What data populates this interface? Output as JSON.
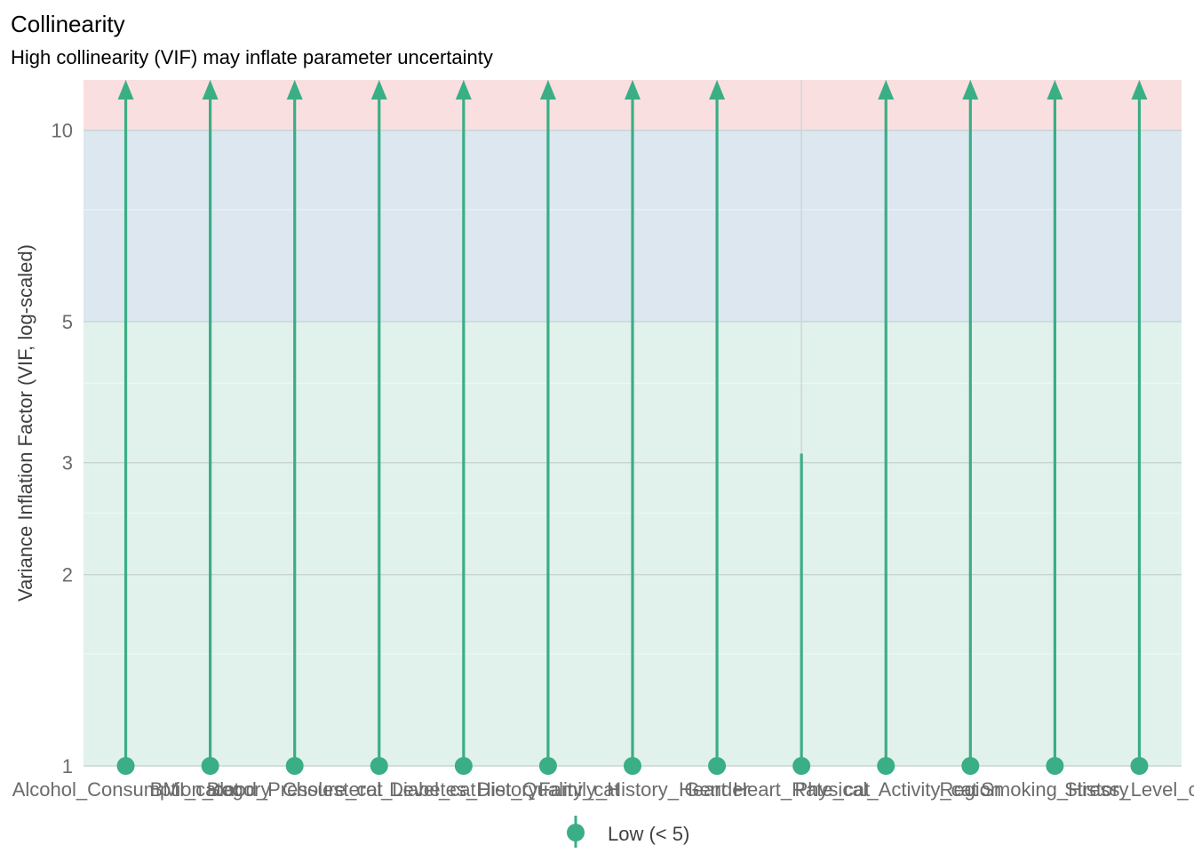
{
  "chart_data": {
    "type": "lollipop",
    "title": "Collinearity",
    "subtitle": "High collinearity (VIF) may inflate parameter uncertainty",
    "xlabel": "",
    "ylabel": "Variance Inflation Factor (VIF, log-scaled)",
    "y_scale": "log",
    "ylim": [
      1,
      12
    ],
    "y_ticks": [
      1,
      2,
      3,
      5,
      10
    ],
    "bands": [
      {
        "from": 1,
        "to": 5,
        "color": "#e1f1ec"
      },
      {
        "from": 5,
        "to": 10,
        "color": "#dce7f0"
      },
      {
        "from": 10,
        "to": 12,
        "color": "#f9dfe0"
      }
    ],
    "categories": [
      "Alcohol_Consumption_cat",
      "BMI_category",
      "Blood_Pressure_cat",
      "Cholesterol_Level_cat",
      "Diabetes_History",
      "Diet_Quality_cat",
      "Family_History_Heart",
      "Gender",
      "Heart_Rate_cat",
      "Physical_Activity_cat",
      "Region",
      "Smoking_History",
      "Stress_Level_cat"
    ],
    "values": [
      12,
      12,
      12,
      12,
      12,
      12,
      12,
      12,
      3.1,
      12,
      12,
      12,
      12
    ],
    "off_scale": [
      true,
      true,
      true,
      true,
      true,
      true,
      true,
      true,
      false,
      true,
      true,
      true,
      true
    ],
    "series": [
      {
        "name": "Low (< 5)",
        "color": "#3aae85"
      }
    ],
    "legend": {
      "position": "bottom",
      "label": "Low (< 5)"
    },
    "grid": true
  }
}
